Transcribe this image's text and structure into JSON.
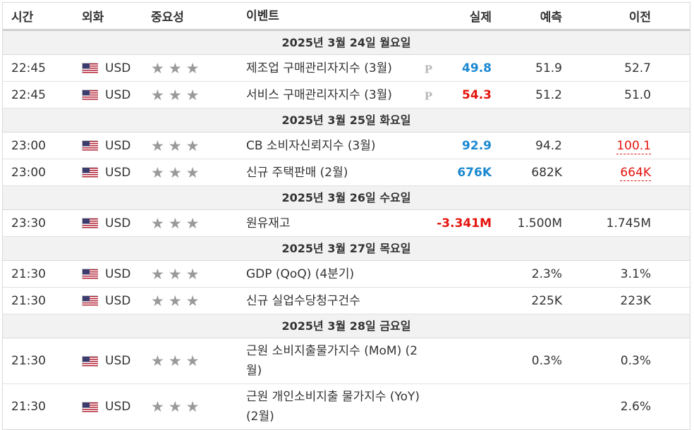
{
  "headers": {
    "time": "시간",
    "currency": "외화",
    "importance": "중요성",
    "event": "이벤트",
    "actual": "실제",
    "forecast": "예측",
    "previous": "이전"
  },
  "colors": {
    "actual_up": "#1a88d1",
    "actual_down": "#e4140e",
    "stars": "#9a9a9a",
    "day_bg": "#f2f2f2"
  },
  "icons": {
    "flag": "us-flag-icon",
    "star": "star-icon",
    "preliminary": "p-icon"
  },
  "days": [
    {
      "label": "2025년 3월 24일 월요일"
    },
    {
      "label": "2025년 3월 25일 화요일"
    },
    {
      "label": "2025년 3월 26일 수요일"
    },
    {
      "label": "2025년 3월 27일 목요일"
    },
    {
      "label": "2025년 3월 28일 금요일"
    }
  ],
  "events": [
    {
      "time": "22:45",
      "currency": "USD",
      "stars": 3,
      "event": "제조업 구매관리자지수 (3월)",
      "preliminary": "P",
      "actual": "49.8",
      "actual_trend": "up",
      "forecast": "51.9",
      "previous": "52.7"
    },
    {
      "time": "22:45",
      "currency": "USD",
      "stars": 3,
      "event": "서비스 구매관리자지수 (3월)",
      "preliminary": "P",
      "actual": "54.3",
      "actual_trend": "down",
      "forecast": "51.2",
      "previous": "51.0"
    },
    {
      "time": "23:00",
      "currency": "USD",
      "stars": 3,
      "event": "CB 소비자신뢰지수 (3월)",
      "actual": "92.9",
      "actual_trend": "up",
      "forecast": "94.2",
      "previous": "100.1",
      "previous_revised": true
    },
    {
      "time": "23:00",
      "currency": "USD",
      "stars": 3,
      "event": "신규 주택판매 (2월)",
      "actual": "676K",
      "actual_trend": "up",
      "forecast": "682K",
      "previous": "664K",
      "previous_revised": true
    },
    {
      "time": "23:30",
      "currency": "USD",
      "stars": 3,
      "event": "원유재고",
      "actual": "-3.341M",
      "actual_trend": "down",
      "forecast": "1.500M",
      "previous": "1.745M"
    },
    {
      "time": "21:30",
      "currency": "USD",
      "stars": 3,
      "event": "GDP (QoQ) (4분기)",
      "actual": "",
      "forecast": "2.3%",
      "previous": "3.1%"
    },
    {
      "time": "21:30",
      "currency": "USD",
      "stars": 3,
      "event": "신규 실업수당청구건수",
      "actual": "",
      "forecast": "225K",
      "previous": "223K"
    },
    {
      "time": "21:30",
      "currency": "USD",
      "stars": 3,
      "event": "근원 소비지출물가지수 (MoM) (2월)",
      "actual": "",
      "forecast": "0.3%",
      "previous": "0.3%"
    },
    {
      "time": "21:30",
      "currency": "USD",
      "stars": 3,
      "event": "근원 개인소비지출 물가지수 (YoY) (2월)",
      "actual": "",
      "forecast": "",
      "previous": "2.6%"
    }
  ]
}
